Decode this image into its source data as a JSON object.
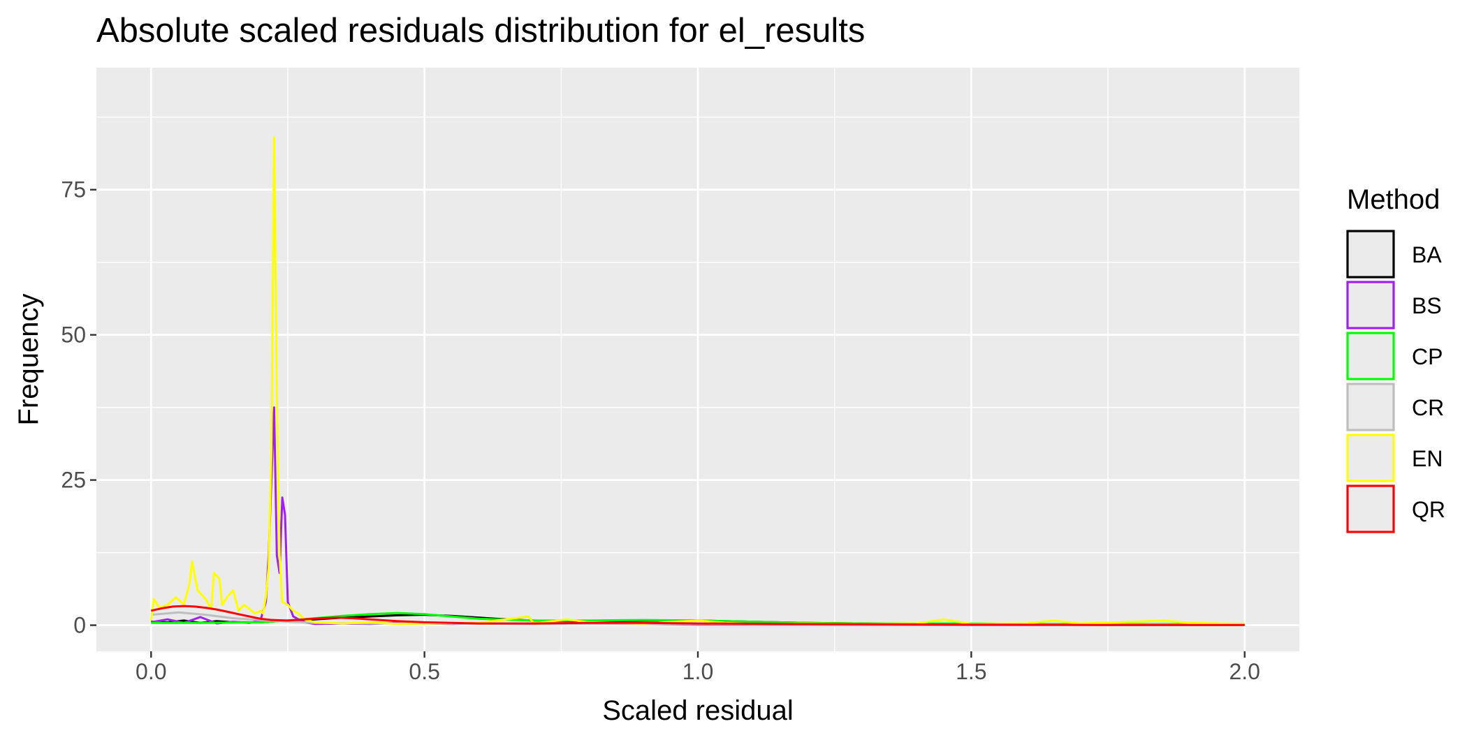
{
  "chart_data": {
    "type": "line",
    "title": "Absolute scaled residuals distribution for el_results",
    "xlabel": "Scaled residual",
    "ylabel": "Frequency",
    "xlim": [
      -0.1,
      2.1
    ],
    "ylim": [
      -4.5,
      96
    ],
    "x_ticks": [
      0.0,
      0.5,
      1.0,
      1.5,
      2.0
    ],
    "x_tick_labels": [
      "0.0",
      "0.5",
      "1.0",
      "1.5",
      "2.0"
    ],
    "x_minor": [
      0.25,
      0.75,
      1.25,
      1.75
    ],
    "y_ticks": [
      0,
      25,
      50,
      75
    ],
    "y_tick_labels": [
      "0",
      "25",
      "50",
      "75"
    ],
    "y_minor": [
      12.5,
      37.5,
      62.5,
      87.5
    ],
    "grid": true,
    "legend": {
      "title": "Method",
      "position": "right"
    },
    "series": [
      {
        "name": "BA",
        "color": "#000000",
        "points": [
          [
            0.0,
            0.6
          ],
          [
            0.03,
            0.5
          ],
          [
            0.06,
            0.8
          ],
          [
            0.09,
            0.4
          ],
          [
            0.12,
            0.7
          ],
          [
            0.15,
            0.5
          ],
          [
            0.2,
            0.5
          ],
          [
            0.25,
            0.8
          ],
          [
            0.3,
            1.0
          ],
          [
            0.35,
            1.3
          ],
          [
            0.4,
            1.5
          ],
          [
            0.45,
            1.7
          ],
          [
            0.5,
            1.8
          ],
          [
            0.55,
            1.6
          ],
          [
            0.6,
            1.3
          ],
          [
            0.65,
            1.0
          ],
          [
            0.7,
            0.8
          ],
          [
            0.8,
            0.7
          ],
          [
            0.9,
            0.8
          ],
          [
            1.0,
            0.8
          ],
          [
            1.1,
            0.6
          ],
          [
            1.2,
            0.4
          ],
          [
            1.3,
            0.3
          ],
          [
            1.4,
            0.2
          ],
          [
            1.5,
            0.1
          ],
          [
            1.7,
            0.1
          ],
          [
            2.0,
            0.1
          ]
        ]
      },
      {
        "name": "BS",
        "color": "#a020f0",
        "points": [
          [
            0.0,
            0.5
          ],
          [
            0.03,
            1.0
          ],
          [
            0.06,
            0.4
          ],
          [
            0.09,
            1.4
          ],
          [
            0.12,
            0.3
          ],
          [
            0.15,
            0.6
          ],
          [
            0.18,
            0.4
          ],
          [
            0.2,
            0.8
          ],
          [
            0.21,
            4.0
          ],
          [
            0.215,
            12
          ],
          [
            0.22,
            25
          ],
          [
            0.225,
            37.5
          ],
          [
            0.23,
            12
          ],
          [
            0.235,
            9
          ],
          [
            0.24,
            22
          ],
          [
            0.245,
            19
          ],
          [
            0.25,
            4
          ],
          [
            0.26,
            1.5
          ],
          [
            0.28,
            0.5
          ],
          [
            0.3,
            0.2
          ],
          [
            0.35,
            0.3
          ],
          [
            0.4,
            0.2
          ],
          [
            0.45,
            0.4
          ],
          [
            0.5,
            0.3
          ],
          [
            0.55,
            0.2
          ],
          [
            0.6,
            0.3
          ],
          [
            0.7,
            0.2
          ],
          [
            0.8,
            0.3
          ],
          [
            0.9,
            0.2
          ],
          [
            1.0,
            0.1
          ],
          [
            1.2,
            0.1
          ],
          [
            1.5,
            0.05
          ],
          [
            2.0,
            0.05
          ]
        ]
      },
      {
        "name": "CP",
        "color": "#00ff00",
        "points": [
          [
            0.0,
            0.4
          ],
          [
            0.1,
            0.4
          ],
          [
            0.2,
            0.5
          ],
          [
            0.25,
            0.8
          ],
          [
            0.3,
            1.2
          ],
          [
            0.35,
            1.6
          ],
          [
            0.4,
            1.9
          ],
          [
            0.45,
            2.1
          ],
          [
            0.5,
            1.9
          ],
          [
            0.55,
            1.5
          ],
          [
            0.6,
            1.1
          ],
          [
            0.7,
            0.8
          ],
          [
            0.8,
            0.8
          ],
          [
            0.9,
            0.9
          ],
          [
            1.0,
            0.8
          ],
          [
            1.1,
            0.6
          ],
          [
            1.2,
            0.4
          ],
          [
            1.3,
            0.3
          ],
          [
            1.4,
            0.3
          ],
          [
            1.5,
            0.3
          ],
          [
            1.6,
            0.2
          ],
          [
            1.8,
            0.2
          ],
          [
            2.0,
            0.2
          ]
        ]
      },
      {
        "name": "CR",
        "color": "#bebebe",
        "points": [
          [
            0.0,
            1.8
          ],
          [
            0.05,
            2.2
          ],
          [
            0.1,
            1.8
          ],
          [
            0.15,
            1.2
          ],
          [
            0.2,
            0.9
          ],
          [
            0.25,
            0.6
          ],
          [
            0.3,
            0.4
          ],
          [
            0.4,
            0.3
          ],
          [
            0.5,
            0.3
          ],
          [
            0.7,
            0.2
          ],
          [
            1.0,
            0.2
          ],
          [
            1.5,
            0.1
          ],
          [
            2.0,
            0.1
          ]
        ]
      },
      {
        "name": "EN",
        "color": "#ffff00",
        "points": [
          [
            0.0,
            0.8
          ],
          [
            0.005,
            4.5
          ],
          [
            0.015,
            3.0
          ],
          [
            0.03,
            3.5
          ],
          [
            0.045,
            4.8
          ],
          [
            0.06,
            3.6
          ],
          [
            0.07,
            7.0
          ],
          [
            0.075,
            11.0
          ],
          [
            0.085,
            6.0
          ],
          [
            0.1,
            4.5
          ],
          [
            0.11,
            2.8
          ],
          [
            0.115,
            9.0
          ],
          [
            0.125,
            8.0
          ],
          [
            0.13,
            3.5
          ],
          [
            0.14,
            5.0
          ],
          [
            0.15,
            6.0
          ],
          [
            0.16,
            2.5
          ],
          [
            0.17,
            3.5
          ],
          [
            0.18,
            2.8
          ],
          [
            0.19,
            2.0
          ],
          [
            0.2,
            2.5
          ],
          [
            0.205,
            2.0
          ],
          [
            0.21,
            5.0
          ],
          [
            0.215,
            10.0
          ],
          [
            0.22,
            30.0
          ],
          [
            0.225,
            84.0
          ],
          [
            0.23,
            40.0
          ],
          [
            0.235,
            12.0
          ],
          [
            0.24,
            4.0
          ],
          [
            0.25,
            3.5
          ],
          [
            0.26,
            2.5
          ],
          [
            0.27,
            2.0
          ],
          [
            0.28,
            1.0
          ],
          [
            0.3,
            0.5
          ],
          [
            0.35,
            0.3
          ],
          [
            0.4,
            0.5
          ],
          [
            0.45,
            0.2
          ],
          [
            0.5,
            0.3
          ],
          [
            0.6,
            0.4
          ],
          [
            0.69,
            1.5
          ],
          [
            0.7,
            0.3
          ],
          [
            0.76,
            1.0
          ],
          [
            0.8,
            0.5
          ],
          [
            0.9,
            0.3
          ],
          [
            1.0,
            0.8
          ],
          [
            1.05,
            0.4
          ],
          [
            1.1,
            0.2
          ],
          [
            1.2,
            0.3
          ],
          [
            1.3,
            0.2
          ],
          [
            1.4,
            0.3
          ],
          [
            1.45,
            1.0
          ],
          [
            1.5,
            0.2
          ],
          [
            1.6,
            0.3
          ],
          [
            1.65,
            0.8
          ],
          [
            1.7,
            0.3
          ],
          [
            1.8,
            0.6
          ],
          [
            1.85,
            0.8
          ],
          [
            1.9,
            0.4
          ],
          [
            2.0,
            0.2
          ]
        ]
      },
      {
        "name": "QR",
        "color": "#ff0000",
        "points": [
          [
            0.0,
            2.5
          ],
          [
            0.02,
            2.9
          ],
          [
            0.04,
            3.2
          ],
          [
            0.06,
            3.3
          ],
          [
            0.08,
            3.2
          ],
          [
            0.1,
            3.0
          ],
          [
            0.12,
            2.7
          ],
          [
            0.14,
            2.3
          ],
          [
            0.16,
            1.9
          ],
          [
            0.18,
            1.5
          ],
          [
            0.2,
            1.1
          ],
          [
            0.22,
            0.9
          ],
          [
            0.25,
            0.8
          ],
          [
            0.28,
            1.0
          ],
          [
            0.31,
            1.2
          ],
          [
            0.34,
            1.3
          ],
          [
            0.37,
            1.2
          ],
          [
            0.4,
            1.0
          ],
          [
            0.45,
            0.7
          ],
          [
            0.5,
            0.5
          ],
          [
            0.6,
            0.3
          ],
          [
            0.7,
            0.3
          ],
          [
            0.8,
            0.4
          ],
          [
            0.9,
            0.4
          ],
          [
            1.0,
            0.3
          ],
          [
            1.2,
            0.2
          ],
          [
            1.5,
            0.1
          ],
          [
            1.75,
            0.05
          ],
          [
            2.0,
            0.05
          ]
        ]
      }
    ]
  }
}
